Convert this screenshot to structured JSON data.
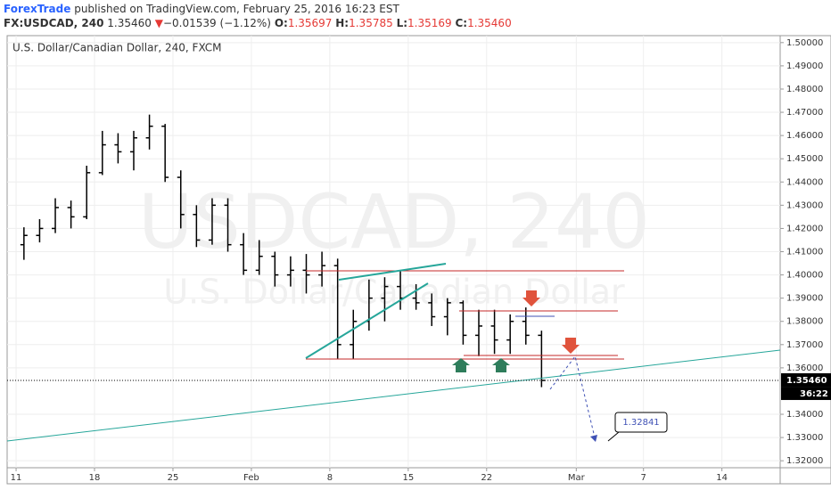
{
  "header": {
    "publisher": "ForexTrade",
    "published": "published on TradingView.com, February 25, 2016 16:23 EST"
  },
  "quote": {
    "symbol": "FX:USDCAD, 240",
    "last": "1.35460",
    "direction": "▼",
    "change": "−0.01539 (−1.12%)",
    "open_label": "O:",
    "open": "1.35697",
    "high_label": "H:",
    "high": "1.35785",
    "low_label": "L:",
    "low": "1.35169",
    "close_label": "C:",
    "close": "1.35460"
  },
  "chart_data": {
    "type": "ohlc",
    "title": "U.S. Dollar/Canadian Dollar, 240, FXCM",
    "watermark": "USDCAD, 240",
    "watermark_subtitle": "U.S. Dollar/Canadian Dollar",
    "color": "#000000",
    "x": [
      0.7,
      2.1,
      3.5,
      4.9,
      6.3,
      7.7,
      9.1,
      10.5,
      11.9,
      13.3,
      14.7,
      16.1,
      17.5,
      18.9,
      20.3,
      21.7,
      23.1,
      24.5,
      25.9,
      27.3,
      28.7,
      30.1,
      31.5,
      32.9,
      34.3,
      35.7,
      37.1,
      38.5,
      39.9,
      41.3,
      42.7,
      44.1,
      45.5,
      46.9
    ],
    "open": [
      1.413,
      1.417,
      1.42,
      1.429,
      1.425,
      1.444,
      1.456,
      1.453,
      1.459,
      1.464,
      1.442,
      1.426,
      1.415,
      1.43,
      1.413,
      1.402,
      1.408,
      1.4,
      1.402,
      1.4,
      1.404,
      1.37,
      1.38,
      1.39,
      1.395,
      1.39,
      1.388,
      1.382,
      1.388,
      1.374,
      1.378,
      1.372,
      1.38,
      1.374
    ],
    "high": [
      1.4205,
      1.424,
      1.433,
      1.432,
      1.447,
      1.462,
      1.461,
      1.462,
      1.469,
      1.465,
      1.445,
      1.43,
      1.433,
      1.433,
      1.418,
      1.415,
      1.41,
      1.408,
      1.409,
      1.41,
      1.407,
      1.385,
      1.398,
      1.399,
      1.402,
      1.396,
      1.392,
      1.39,
      1.389,
      1.385,
      1.385,
      1.383,
      1.386,
      1.376
    ],
    "low": [
      1.4065,
      1.414,
      1.418,
      1.42,
      1.424,
      1.443,
      1.448,
      1.445,
      1.454,
      1.44,
      1.42,
      1.412,
      1.413,
      1.41,
      1.4,
      1.4,
      1.395,
      1.395,
      1.392,
      1.395,
      1.364,
      1.364,
      1.376,
      1.38,
      1.385,
      1.385,
      1.378,
      1.374,
      1.37,
      1.365,
      1.366,
      1.366,
      1.37,
      1.35169
    ],
    "close": [
      1.417,
      1.42,
      1.429,
      1.425,
      1.444,
      1.456,
      1.453,
      1.459,
      1.464,
      1.442,
      1.426,
      1.415,
      1.43,
      1.413,
      1.402,
      1.408,
      1.4,
      1.402,
      1.4,
      1.404,
      1.37,
      1.38,
      1.39,
      1.395,
      1.39,
      1.388,
      1.382,
      1.388,
      1.374,
      1.378,
      1.372,
      1.38,
      1.374,
      1.3546
    ],
    "xlim": [
      -0.8,
      68.2
    ],
    "xticks": [
      {
        "value": 0,
        "label": "11"
      },
      {
        "value": 7,
        "label": "18"
      },
      {
        "value": 14,
        "label": "25"
      },
      {
        "value": 21,
        "label": "Feb"
      },
      {
        "value": 28,
        "label": "8"
      },
      {
        "value": 35,
        "label": "15"
      },
      {
        "value": 42,
        "label": "22"
      },
      {
        "value": 50,
        "label": "Mar"
      },
      {
        "value": 56,
        "label": "7"
      },
      {
        "value": 63,
        "label": "14"
      }
    ],
    "ylim": [
      1.317,
      1.503
    ],
    "yticks": [
      {
        "value": 1.32,
        "label": "1.32000"
      },
      {
        "value": 1.33,
        "label": "1.33000"
      },
      {
        "value": 1.34,
        "label": "1.34000"
      },
      {
        "value": 1.36,
        "label": "1.36000"
      },
      {
        "value": 1.37,
        "label": "1.37000"
      },
      {
        "value": 1.38,
        "label": "1.38000"
      },
      {
        "value": 1.39,
        "label": "1.39000"
      },
      {
        "value": 1.4,
        "label": "1.40000"
      },
      {
        "value": 1.41,
        "label": "1.41000"
      },
      {
        "value": 1.42,
        "label": "1.42000"
      },
      {
        "value": 1.43,
        "label": "1.43000"
      },
      {
        "value": 1.44,
        "label": "1.44000"
      },
      {
        "value": 1.45,
        "label": "1.45000"
      },
      {
        "value": 1.46,
        "label": "1.46000"
      },
      {
        "value": 1.47,
        "label": "1.47000"
      },
      {
        "value": 1.48,
        "label": "1.48000"
      },
      {
        "value": 1.49,
        "label": "1.49000"
      },
      {
        "value": 1.5,
        "label": "1.50000"
      }
    ],
    "grid": true,
    "last_price": {
      "value": 1.3546,
      "label": "1.35460"
    },
    "countdown": "36:22",
    "target_label": "1.32841"
  }
}
